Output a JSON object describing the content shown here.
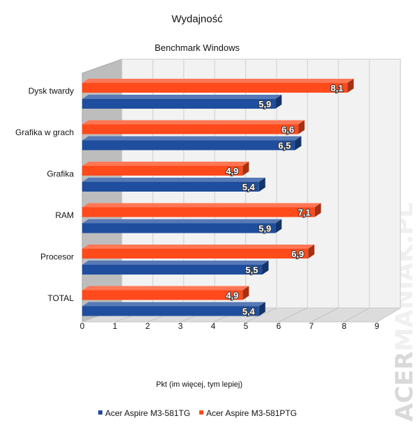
{
  "chart_data": {
    "type": "bar",
    "orientation": "horizontal",
    "title": "Wydajność",
    "subtitle": "Benchmark Windows",
    "xlabel": "Pkt (im więcej, tym lepiej)",
    "xlim": [
      0,
      9
    ],
    "ticks": [
      "0",
      "1",
      "2",
      "3",
      "4",
      "5",
      "6",
      "7",
      "8",
      "9"
    ],
    "categories": [
      "Dysk twardy",
      "Grafika w grach",
      "Grafika",
      "RAM",
      "Procesor",
      "TOTAL"
    ],
    "series": [
      {
        "name": "Acer Aspire M3-581TG",
        "color": "#1f4e9e",
        "values": [
          5.9,
          6.5,
          5.4,
          5.9,
          5.5,
          5.4
        ],
        "labels": [
          "5,9",
          "6,5",
          "5,4",
          "5,9",
          "5,5",
          "5,4"
        ]
      },
      {
        "name": "Acer Aspire M3-581PTG",
        "color": "#ff4a1c",
        "values": [
          8.1,
          6.6,
          4.9,
          7.1,
          6.9,
          4.9
        ],
        "labels": [
          "8,1",
          "6,6",
          "4,9",
          "7,1",
          "6,9",
          "4,9"
        ]
      }
    ],
    "grid": true,
    "legend": "bottom",
    "style": "3d"
  },
  "watermark": {
    "text1": "ACER",
    "text2": "MANIAK.PL"
  }
}
